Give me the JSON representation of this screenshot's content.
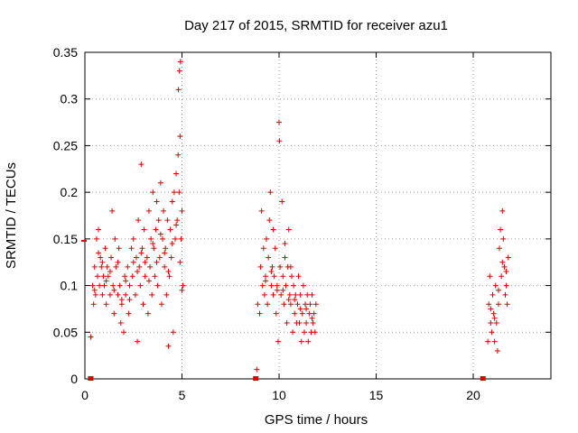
{
  "chart_data": {
    "type": "scatter",
    "title": "Day 217 of 2015, SRMTID for receiver azu1",
    "xlabel": "GPS time / hours",
    "ylabel": "SRMTID / TECUs",
    "xlim": [
      0,
      24
    ],
    "ylim": [
      0,
      0.35
    ],
    "xticks": [
      0,
      5,
      10,
      15,
      20
    ],
    "xtick_labels": [
      "0",
      "5",
      "10",
      "15",
      "20"
    ],
    "yticks": [
      0,
      0.05,
      0.1,
      0.15,
      0.2,
      0.25,
      0.3,
      0.35
    ],
    "ytick_labels": [
      "0",
      "0.05",
      "0.1",
      "0.15",
      "0.2",
      "0.25",
      "0.3",
      "0.35"
    ],
    "grid": true,
    "marker": "+",
    "color": "#e00000",
    "series": [
      {
        "name": "SRMTID",
        "points": [
          [
            0.3,
            0.045
          ],
          [
            0.4,
            0.1
          ],
          [
            0.45,
            0.08
          ],
          [
            0.5,
            0.12
          ],
          [
            0.55,
            0.09
          ],
          [
            0.6,
            0.15
          ],
          [
            0.65,
            0.11
          ],
          [
            0.7,
            0.16
          ],
          [
            0.75,
            0.1
          ],
          [
            0.8,
            0.13
          ],
          [
            0.85,
            0.12
          ],
          [
            0.9,
            0.09
          ],
          [
            0.95,
            0.11
          ],
          [
            1.0,
            0.1
          ],
          [
            1.05,
            0.14
          ],
          [
            1.1,
            0.08
          ],
          [
            1.15,
            0.12
          ],
          [
            1.2,
            0.11
          ],
          [
            1.3,
            0.09
          ],
          [
            1.35,
            0.13
          ],
          [
            1.4,
            0.18
          ],
          [
            1.45,
            0.1
          ],
          [
            1.5,
            0.07
          ],
          [
            1.55,
            0.15
          ],
          [
            1.6,
            0.12
          ],
          [
            1.7,
            0.09
          ],
          [
            1.75,
            0.14
          ],
          [
            1.8,
            0.1
          ],
          [
            1.85,
            0.06
          ],
          [
            1.9,
            0.08
          ],
          [
            2.0,
            0.05
          ],
          [
            2.05,
            0.11
          ],
          [
            2.1,
            0.09
          ],
          [
            2.2,
            0.12
          ],
          [
            2.25,
            0.07
          ],
          [
            2.3,
            0.1
          ],
          [
            2.4,
            0.14
          ],
          [
            2.45,
            0.11
          ],
          [
            2.5,
            0.15
          ],
          [
            2.6,
            0.09
          ],
          [
            2.65,
            0.13
          ],
          [
            2.7,
            0.04
          ],
          [
            2.75,
            0.17
          ],
          [
            2.8,
            0.12
          ],
          [
            2.85,
            0.1
          ],
          [
            2.9,
            0.23
          ],
          [
            2.95,
            0.14
          ],
          [
            3.0,
            0.08
          ],
          [
            3.05,
            0.16
          ],
          [
            3.1,
            0.11
          ],
          [
            3.2,
            0.13
          ],
          [
            3.25,
            0.07
          ],
          [
            3.3,
            0.18
          ],
          [
            3.35,
            0.12
          ],
          [
            3.4,
            0.15
          ],
          [
            3.45,
            0.09
          ],
          [
            3.5,
            0.2
          ],
          [
            3.55,
            0.14
          ],
          [
            3.6,
            0.11
          ],
          [
            3.65,
            0.16
          ],
          [
            3.7,
            0.19
          ],
          [
            3.75,
            0.1
          ],
          [
            3.8,
            0.17
          ],
          [
            3.85,
            0.13
          ],
          [
            3.9,
            0.21
          ],
          [
            3.95,
            0.08
          ],
          [
            4.0,
            0.15
          ],
          [
            4.05,
            0.18
          ],
          [
            4.1,
            0.12
          ],
          [
            4.15,
            0.14
          ],
          [
            4.2,
            0.09
          ],
          [
            4.25,
            0.17
          ],
          [
            4.3,
            0.035
          ],
          [
            4.35,
            0.11
          ],
          [
            4.4,
            0.16
          ],
          [
            4.45,
            0.13
          ],
          [
            4.5,
            0.19
          ],
          [
            4.55,
            0.05
          ],
          [
            4.6,
            0.2
          ],
          [
            4.65,
            0.15
          ],
          [
            4.7,
            0.22
          ],
          [
            4.75,
            0.17
          ],
          [
            4.8,
            0.24
          ],
          [
            4.82,
            0.31
          ],
          [
            4.85,
            0.2
          ],
          [
            4.87,
            0.33
          ],
          [
            4.9,
            0.26
          ],
          [
            4.92,
            0.34
          ],
          [
            4.95,
            0.15
          ],
          [
            5.0,
            0.18
          ],
          [
            5.05,
            0.1
          ],
          [
            0.5,
            0.095
          ],
          [
            0.7,
            0.135
          ],
          [
            0.9,
            0.125
          ],
          [
            1.1,
            0.105
          ],
          [
            1.3,
            0.115
          ],
          [
            1.5,
            0.095
          ],
          [
            1.7,
            0.125
          ],
          [
            1.9,
            0.085
          ],
          [
            2.1,
            0.105
          ],
          [
            2.3,
            0.085
          ],
          [
            2.5,
            0.125
          ],
          [
            2.7,
            0.115
          ],
          [
            2.9,
            0.135
          ],
          [
            3.1,
            0.125
          ],
          [
            3.3,
            0.105
          ],
          [
            3.5,
            0.145
          ],
          [
            3.7,
            0.125
          ],
          [
            3.9,
            0.155
          ],
          [
            4.1,
            0.135
          ],
          [
            4.3,
            0.115
          ],
          [
            4.5,
            0.145
          ],
          [
            4.7,
            0.165
          ],
          [
            4.9,
            0.125
          ],
          [
            5.0,
            0.095
          ],
          [
            8.85,
            0.01
          ],
          [
            8.9,
            0.08
          ],
          [
            9.0,
            0.07
          ],
          [
            9.05,
            0.12
          ],
          [
            9.1,
            0.18
          ],
          [
            9.15,
            0.1
          ],
          [
            9.2,
            0.14
          ],
          [
            9.25,
            0.09
          ],
          [
            9.3,
            0.11
          ],
          [
            9.35,
            0.15
          ],
          [
            9.4,
            0.08
          ],
          [
            9.45,
            0.13
          ],
          [
            9.5,
            0.17
          ],
          [
            9.55,
            0.2
          ],
          [
            9.6,
            0.1
          ],
          [
            9.65,
            0.12
          ],
          [
            9.7,
            0.09
          ],
          [
            9.75,
            0.11
          ],
          [
            9.8,
            0.14
          ],
          [
            9.85,
            0.07
          ],
          [
            9.9,
            0.1
          ],
          [
            9.95,
            0.04
          ],
          [
            10.0,
            0.275
          ],
          [
            10.02,
            0.255
          ],
          [
            10.05,
            0.12
          ],
          [
            10.1,
            0.09
          ],
          [
            10.15,
            0.19
          ],
          [
            10.2,
            0.11
          ],
          [
            10.25,
            0.08
          ],
          [
            10.3,
            0.13
          ],
          [
            10.35,
            0.1
          ],
          [
            10.4,
            0.06
          ],
          [
            10.45,
            0.12
          ],
          [
            10.5,
            0.16
          ],
          [
            10.55,
            0.09
          ],
          [
            10.6,
            0.08
          ],
          [
            10.65,
            0.11
          ],
          [
            10.7,
            0.05
          ],
          [
            10.75,
            0.1
          ],
          [
            10.8,
            0.07
          ],
          [
            10.85,
            0.09
          ],
          [
            10.9,
            0.06
          ],
          [
            10.95,
            0.08
          ],
          [
            11.0,
            0.11
          ],
          [
            11.05,
            0.06
          ],
          [
            11.1,
            0.09
          ],
          [
            11.15,
            0.04
          ],
          [
            11.2,
            0.07
          ],
          [
            11.25,
            0.1
          ],
          [
            11.3,
            0.05
          ],
          [
            11.35,
            0.08
          ],
          [
            11.4,
            0.06
          ],
          [
            11.45,
            0.09
          ],
          [
            11.5,
            0.04
          ],
          [
            11.55,
            0.07
          ],
          [
            11.6,
            0.08
          ],
          [
            11.65,
            0.05
          ],
          [
            11.7,
            0.09
          ],
          [
            11.75,
            0.06
          ],
          [
            11.8,
            0.07
          ],
          [
            11.85,
            0.05
          ],
          [
            11.9,
            0.08
          ],
          [
            9.3,
            0.105
          ],
          [
            9.6,
            0.115
          ],
          [
            9.9,
            0.095
          ],
          [
            10.2,
            0.095
          ],
          [
            10.5,
            0.085
          ],
          [
            10.8,
            0.085
          ],
          [
            11.1,
            0.075
          ],
          [
            11.4,
            0.075
          ],
          [
            11.7,
            0.065
          ],
          [
            9.7,
            0.16
          ],
          [
            10.3,
            0.145
          ],
          [
            10.6,
            0.12
          ],
          [
            20.75,
            0.04
          ],
          [
            20.8,
            0.08
          ],
          [
            20.85,
            0.11
          ],
          [
            20.9,
            0.06
          ],
          [
            20.95,
            0.05
          ],
          [
            21.0,
            0.09
          ],
          [
            21.05,
            0.07
          ],
          [
            21.1,
            0.04
          ],
          [
            21.15,
            0.1
          ],
          [
            21.2,
            0.06
          ],
          [
            21.25,
            0.03
          ],
          [
            21.3,
            0.08
          ],
          [
            21.35,
            0.14
          ],
          [
            21.4,
            0.16
          ],
          [
            21.45,
            0.11
          ],
          [
            21.5,
            0.18
          ],
          [
            21.55,
            0.15
          ],
          [
            21.6,
            0.12
          ],
          [
            21.65,
            0.09
          ],
          [
            21.7,
            0.1
          ],
          [
            21.75,
            0.08
          ],
          [
            21.8,
            0.13
          ],
          [
            20.9,
            0.075
          ],
          [
            21.1,
            0.065
          ],
          [
            21.3,
            0.095
          ],
          [
            21.5,
            0.125
          ],
          [
            21.7,
            0.115
          ]
        ]
      }
    ],
    "flag_points": [
      [
        0.3,
        0.0
      ],
      [
        8.8,
        0.0
      ],
      [
        20.5,
        0.0
      ]
    ],
    "edge_marker": [
      0,
      0.148
    ]
  }
}
